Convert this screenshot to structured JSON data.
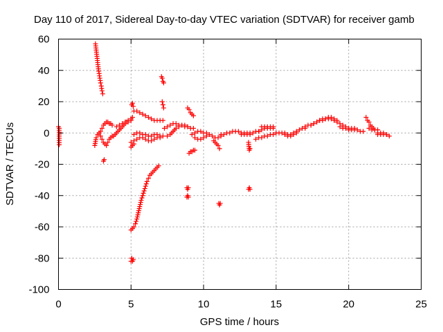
{
  "chart_data": {
    "type": "scatter",
    "title": "Day 110 of 2017, Sidereal Day-to-day VTEC variation (SDTVAR) for receiver gamb",
    "xlabel": "GPS time / hours",
    "ylabel": "SDTVAR / TECUs",
    "xlim": [
      0,
      25
    ],
    "ylim": [
      -100,
      60
    ],
    "x_ticks": [
      0,
      5,
      10,
      15,
      20,
      25
    ],
    "y_ticks": [
      -100,
      -80,
      -60,
      -40,
      -20,
      0,
      20,
      40,
      60
    ],
    "grid": true,
    "marker": "plus",
    "color": "#ff0000",
    "segments": [
      {
        "x": [
          0.0,
          0.05,
          0.05,
          0.05
        ],
        "y": [
          4,
          3,
          -2,
          -7.5
        ]
      },
      {
        "x": [
          2.55,
          2.6,
          2.65,
          2.7,
          2.75,
          2.8,
          2.85,
          2.9,
          2.95,
          3.0,
          3.05
        ],
        "y": [
          57,
          53,
          49,
          45,
          41,
          38,
          35,
          32,
          30,
          27,
          25
        ]
      },
      {
        "x": [
          2.5,
          2.6,
          2.7,
          2.8,
          2.9,
          3.0,
          3.1,
          3.2,
          3.3,
          3.4,
          3.5,
          3.6,
          3.7
        ],
        "y": [
          -8,
          -3,
          -1,
          0,
          -2,
          -4,
          -6,
          -7,
          -8,
          -6,
          -4,
          -3,
          -2
        ]
      },
      {
        "x": [
          2.9,
          3.0,
          3.1,
          3.2,
          3.3,
          3.4,
          3.5,
          3.6,
          3.7
        ],
        "y": [
          1,
          3,
          5,
          6,
          7,
          7,
          6,
          6,
          5
        ]
      },
      {
        "x": [
          3.1,
          3.15
        ],
        "y": [
          -18,
          -17
        ]
      },
      {
        "x": [
          3.8,
          4.0,
          4.2,
          4.4,
          4.6,
          4.8,
          5.0,
          5.1
        ],
        "y": [
          -2,
          0,
          2,
          4,
          6,
          8,
          9,
          10
        ]
      },
      {
        "x": [
          4.0,
          4.2,
          4.4,
          4.6,
          4.8,
          5.0
        ],
        "y": [
          4,
          5,
          6,
          7,
          7,
          8
        ]
      },
      {
        "x": [
          5.05,
          5.1,
          5.15
        ],
        "y": [
          18,
          19,
          17
        ]
      },
      {
        "x": [
          5.0,
          5.1,
          5.2,
          5.3,
          5.4,
          5.5,
          5.6,
          5.7,
          5.8,
          5.9,
          6.0,
          6.1,
          6.2,
          6.3,
          6.4,
          6.5,
          6.6,
          6.7,
          6.8,
          6.9
        ],
        "y": [
          -62,
          -61,
          -60,
          -58,
          -55,
          -51,
          -47,
          -43,
          -40,
          -37,
          -34,
          -31,
          -29,
          -27,
          -26,
          -25,
          -24,
          -23,
          -22,
          -21
        ]
      },
      {
        "x": [
          5.0,
          5.05,
          5.1,
          5.15
        ],
        "y": [
          -82,
          -80,
          -82,
          -81
        ]
      },
      {
        "x": [
          5.2,
          5.4,
          5.6,
          5.8,
          6.0,
          6.2,
          6.4,
          6.6,
          6.8,
          7.0,
          7.2
        ],
        "y": [
          14,
          14,
          13,
          12,
          11,
          10,
          9,
          8,
          8,
          8,
          8
        ]
      },
      {
        "x": [
          5.0,
          5.2,
          5.4,
          5.6,
          5.8,
          6.0,
          6.2,
          6.4,
          6.6,
          6.8,
          7.0,
          7.2
        ],
        "y": [
          -6,
          -5,
          -4,
          -3,
          -3,
          -4,
          -5,
          -5,
          -4,
          -3,
          -3,
          -2
        ]
      },
      {
        "x": [
          5.2,
          5.4,
          5.6,
          5.8,
          6.0,
          6.2,
          6.4,
          6.6,
          6.8,
          7.0
        ],
        "y": [
          -1,
          0,
          0,
          -1,
          -1,
          -2,
          -2,
          -1,
          -1,
          -2
        ]
      },
      {
        "x": [
          5.0,
          5.1,
          5.2
        ],
        "y": [
          -9,
          -8,
          -7
        ]
      },
      {
        "x": [
          7.1,
          7.15,
          7.2,
          7.25
        ],
        "y": [
          36,
          35,
          33,
          32
        ]
      },
      {
        "x": [
          7.15,
          7.2,
          7.25
        ],
        "y": [
          20,
          18,
          16
        ]
      },
      {
        "x": [
          7.3,
          7.5,
          7.7,
          7.9,
          8.1,
          8.3,
          8.5,
          8.7,
          8.9,
          9.1,
          9.3
        ],
        "y": [
          3,
          4,
          5,
          6,
          6,
          5,
          5,
          4,
          4,
          3,
          3
        ]
      },
      {
        "x": [
          7.5,
          7.7,
          7.9,
          8.1,
          8.3,
          8.5,
          8.7,
          8.9
        ],
        "y": [
          -2,
          -1,
          1,
          3,
          4,
          5,
          5,
          4
        ]
      },
      {
        "x": [
          8.9,
          9.0,
          9.1,
          9.2,
          9.3
        ],
        "y": [
          16,
          15,
          13,
          12,
          11
        ]
      },
      {
        "x": [
          8.85,
          8.9,
          8.95
        ],
        "y": [
          -35,
          -36,
          -35
        ]
      },
      {
        "x": [
          8.85,
          8.9,
          8.95
        ],
        "y": [
          -41,
          -40,
          -41
        ]
      },
      {
        "x": [
          9.0,
          9.1,
          9.2,
          9.3,
          9.4
        ],
        "y": [
          -13,
          -12,
          -12,
          -11,
          -11
        ]
      },
      {
        "x": [
          9.2,
          9.4,
          9.6,
          9.8,
          10.0,
          10.2,
          10.4,
          10.6,
          10.8,
          11.0,
          11.2
        ],
        "y": [
          -1,
          0,
          1,
          1,
          0,
          0,
          -1,
          -2,
          -3,
          -3,
          -2
        ]
      },
      {
        "x": [
          9.4,
          9.6,
          9.8,
          10.0,
          10.2
        ],
        "y": [
          -3,
          -4,
          -4,
          -3,
          -2
        ]
      },
      {
        "x": [
          10.7,
          10.8,
          10.9,
          11.0,
          11.1
        ],
        "y": [
          -5,
          -6,
          -7,
          -8,
          -10
        ]
      },
      {
        "x": [
          11.05,
          11.1,
          11.15
        ],
        "y": [
          -45,
          -46,
          -45
        ]
      },
      {
        "x": [
          11.2,
          11.4,
          11.6,
          11.8,
          12.0,
          12.2,
          12.4,
          12.6,
          12.8,
          13.0,
          13.2,
          13.4,
          13.6,
          13.8
        ],
        "y": [
          -1,
          -1,
          0,
          0,
          1,
          1,
          1,
          0,
          0,
          0,
          0,
          0,
          1,
          1
        ]
      },
      {
        "x": [
          12.6,
          12.8,
          13.0,
          13.2
        ],
        "y": [
          -1,
          -1,
          -1,
          -1
        ]
      },
      {
        "x": [
          13.1,
          13.15,
          13.2
        ],
        "y": [
          -6,
          -11,
          -10
        ]
      },
      {
        "x": [
          13.1,
          13.15,
          13.2
        ],
        "y": [
          -36,
          -35,
          -36
        ]
      },
      {
        "x": [
          13.8,
          14.0,
          14.2,
          14.4,
          14.6,
          14.8
        ],
        "y": [
          1,
          2,
          3,
          3,
          3,
          3
        ]
      },
      {
        "x": [
          13.6,
          13.8,
          14.0,
          14.2,
          14.4,
          14.6,
          14.8,
          15.0
        ],
        "y": [
          -4,
          -3,
          -3,
          -2,
          -2,
          -1,
          -1,
          0
        ]
      },
      {
        "x": [
          14.0,
          14.2,
          14.4,
          14.6,
          14.8
        ],
        "y": [
          4,
          4,
          4,
          4,
          4
        ]
      },
      {
        "x": [
          15.0,
          15.2,
          15.4,
          15.6,
          15.8,
          16.0,
          16.2,
          16.4,
          16.6,
          16.8,
          17.0
        ],
        "y": [
          0,
          0,
          0,
          0,
          -1,
          -1,
          0,
          1,
          2,
          3,
          3
        ]
      },
      {
        "x": [
          15.6,
          15.8,
          16.0,
          16.2,
          16.4
        ],
        "y": [
          -1,
          -2,
          -2,
          -1,
          0
        ]
      },
      {
        "x": [
          17.0,
          17.2,
          17.4,
          17.6,
          17.8,
          18.0,
          18.2,
          18.4,
          18.6,
          18.8,
          19.0,
          19.2,
          19.4
        ],
        "y": [
          4,
          5,
          5,
          6,
          7,
          8,
          8,
          9,
          9,
          9,
          8,
          7,
          6
        ]
      },
      {
        "x": [
          17.4,
          17.6,
          17.8,
          18.0,
          18.2,
          18.4,
          18.6,
          18.8,
          19.0,
          19.2
        ],
        "y": [
          5,
          6,
          7,
          8,
          9,
          9,
          10,
          10,
          9,
          8
        ]
      },
      {
        "x": [
          19.4,
          19.6,
          19.8,
          20.0,
          20.2,
          20.4,
          20.6,
          20.8,
          21.0
        ],
        "y": [
          4,
          3,
          3,
          2,
          2,
          2,
          2,
          1,
          1
        ]
      },
      {
        "x": [
          19.6,
          19.8,
          20.0,
          20.2,
          20.4
        ],
        "y": [
          5,
          4,
          3,
          3,
          3
        ]
      },
      {
        "x": [
          21.2,
          21.3,
          21.4,
          21.5,
          21.6,
          21.7,
          21.8
        ],
        "y": [
          10,
          8,
          7,
          5,
          4,
          3,
          2
        ]
      },
      {
        "x": [
          21.4,
          21.6,
          21.8,
          22.0
        ],
        "y": [
          3,
          2,
          2,
          2
        ]
      },
      {
        "x": [
          22.0,
          22.2,
          22.4,
          22.6,
          22.8
        ],
        "y": [
          -1,
          -1,
          -1,
          -1,
          -2
        ]
      },
      {
        "x": [
          22.0,
          22.2,
          22.4,
          22.6
        ],
        "y": [
          0,
          0,
          0,
          -1
        ]
      }
    ]
  }
}
